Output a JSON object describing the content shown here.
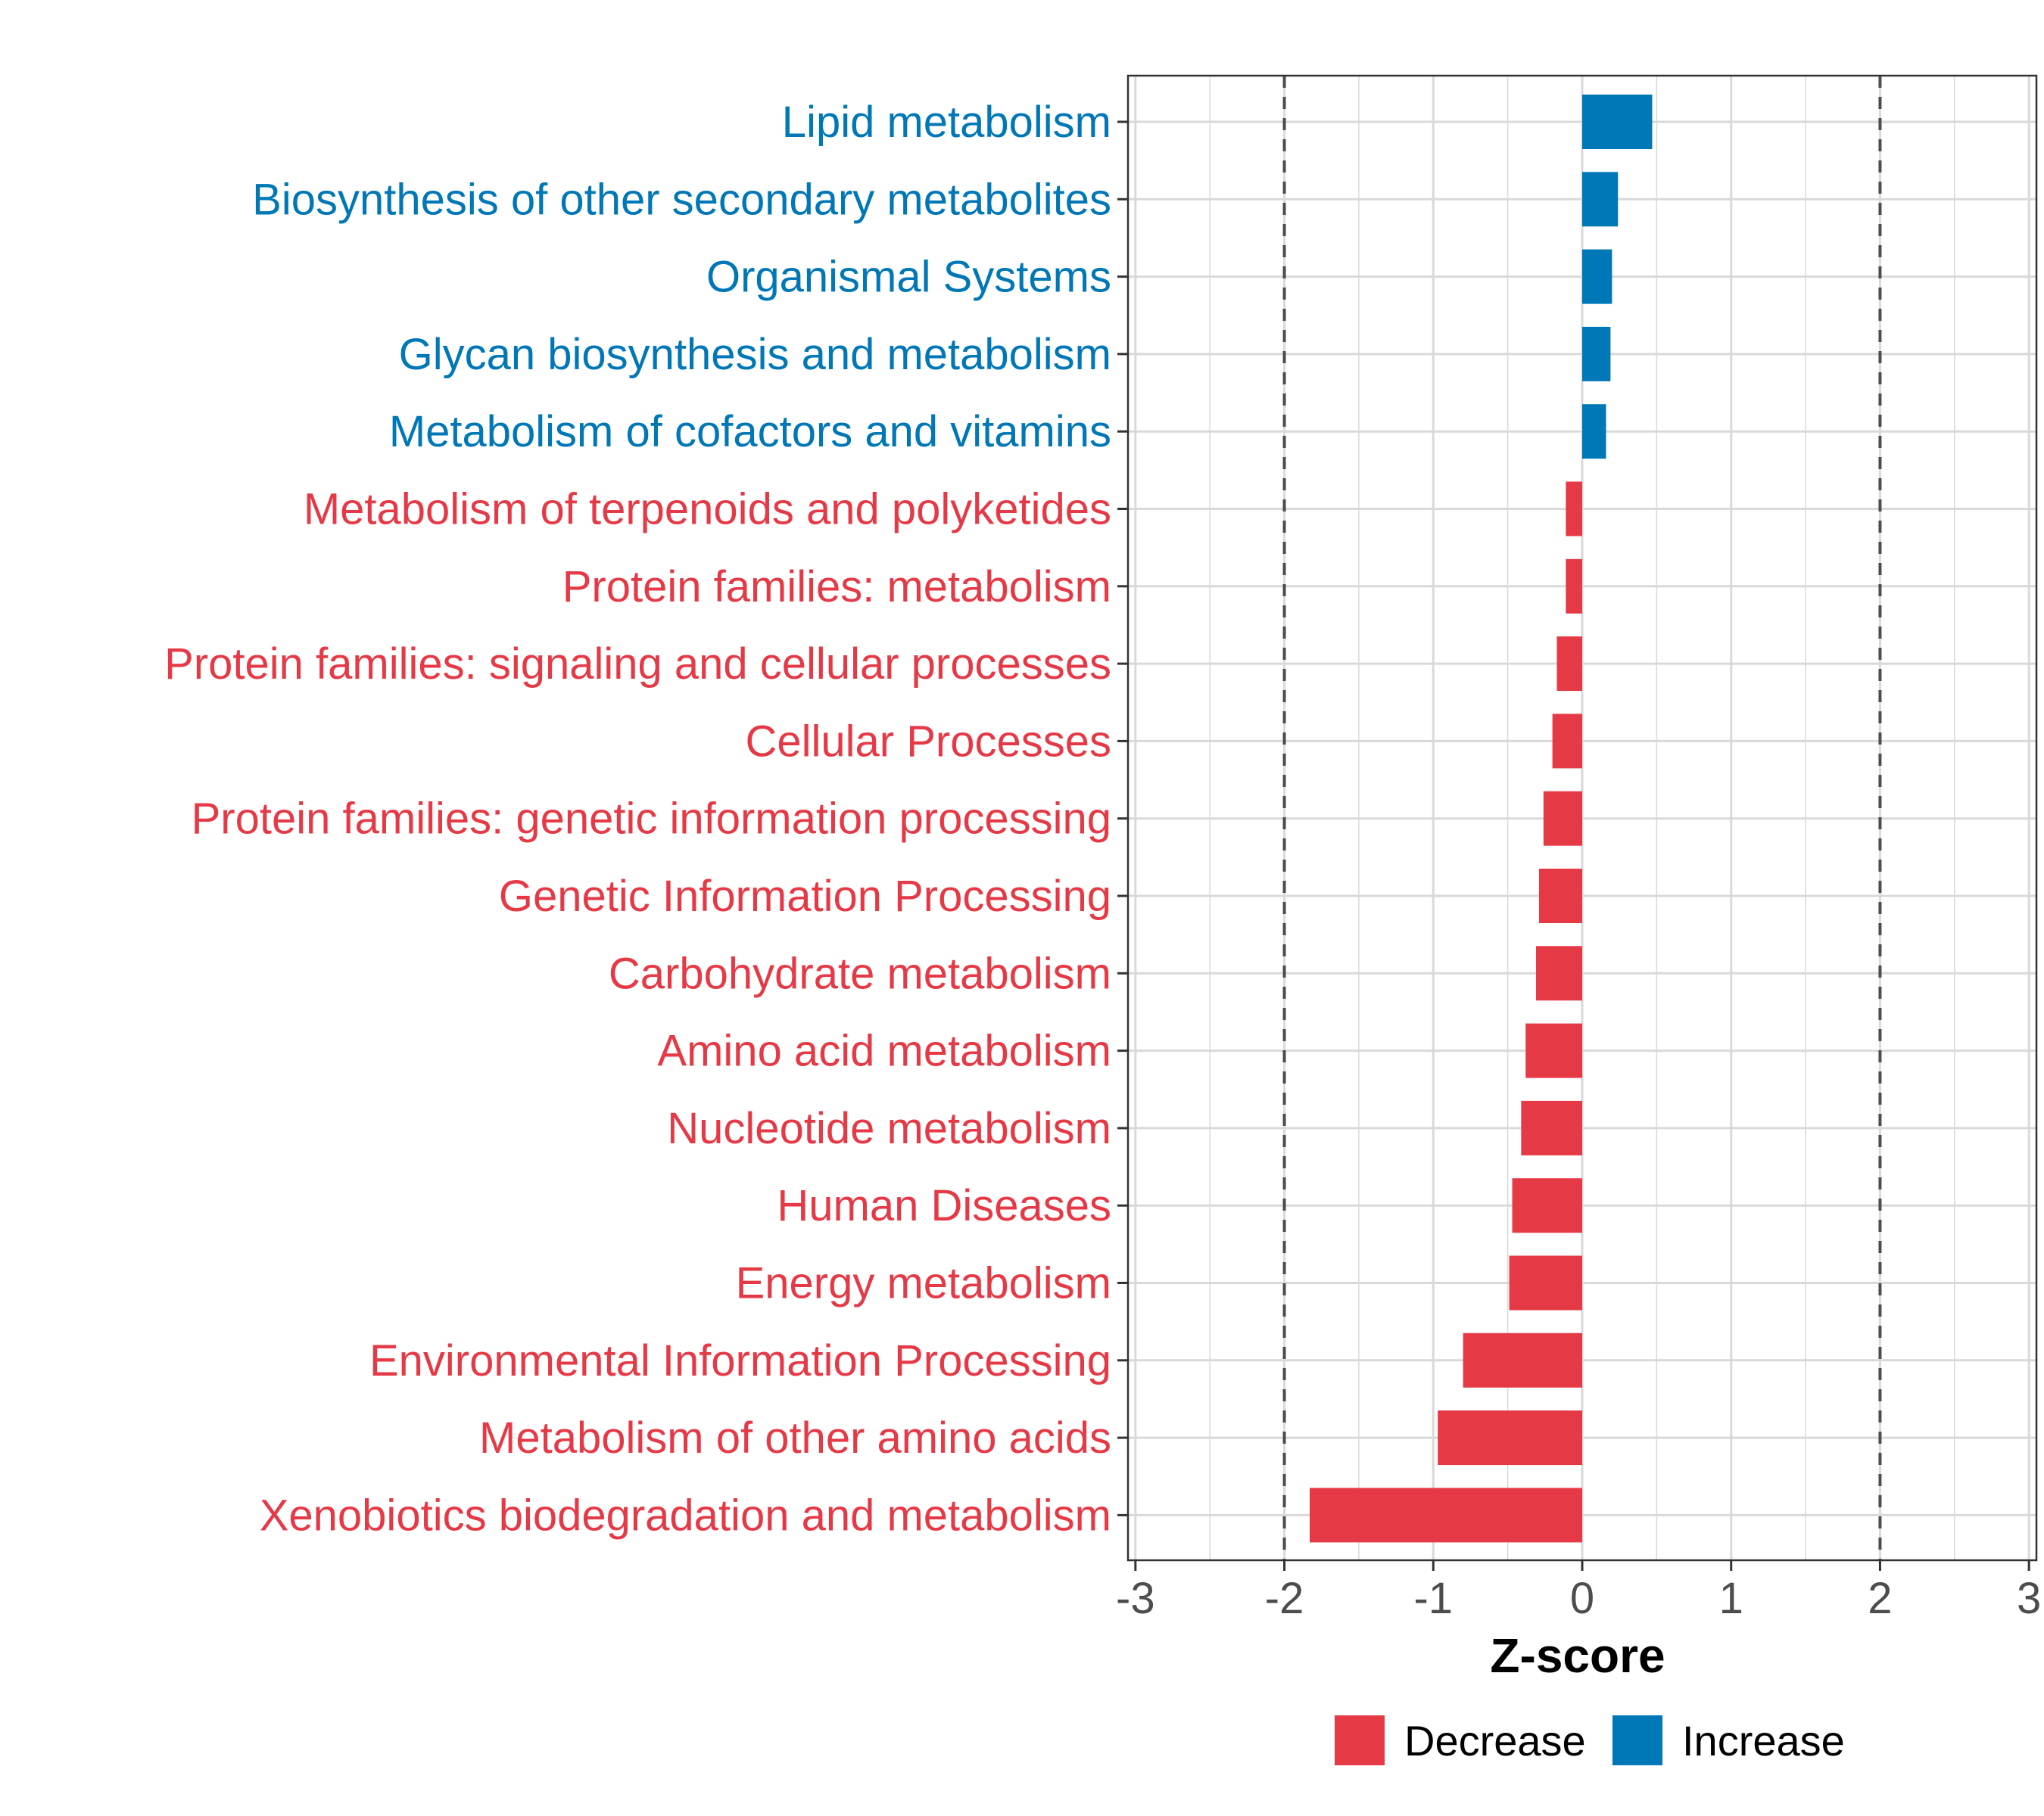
{
  "chart_data": {
    "type": "bar",
    "orientation": "horizontal",
    "xlabel": "Z-score",
    "ylabel": "",
    "xlim": [
      -3.05,
      3.05
    ],
    "xticks": [
      -3,
      -2,
      -1,
      0,
      1,
      2,
      3
    ],
    "xtick_labels": [
      "-3",
      "-2",
      "-1",
      "0",
      "1",
      "2",
      "3"
    ],
    "threshold_lines": [
      -2,
      2
    ],
    "grid": true,
    "legend_position": "bottom",
    "legend": [
      {
        "label": "Decrease",
        "color": "#e63946"
      },
      {
        "label": "Increase",
        "color": "#0077b6"
      }
    ],
    "categories": [
      "Lipid metabolism",
      "Biosynthesis of other secondary metabolites",
      "Organismal Systems",
      "Glycan biosynthesis and metabolism",
      "Metabolism of cofactors and vitamins",
      "Metabolism of terpenoids and polyketides",
      "Protein families: metabolism",
      "Protein families: signaling and cellular processes",
      "Cellular Processes",
      "Protein families: genetic information processing",
      "Genetic Information Processing",
      "Carbohydrate metabolism",
      "Amino acid metabolism",
      "Nucleotide metabolism",
      "Human Diseases",
      "Energy metabolism",
      "Environmental Information Processing",
      "Metabolism of other amino acids",
      "Xenobiotics biodegradation and metabolism"
    ],
    "values": [
      0.47,
      0.24,
      0.2,
      0.19,
      0.16,
      -0.11,
      -0.11,
      -0.17,
      -0.2,
      -0.26,
      -0.29,
      -0.31,
      -0.38,
      -0.41,
      -0.47,
      -0.49,
      -0.8,
      -0.97,
      -1.83
    ],
    "direction": [
      "Increase",
      "Increase",
      "Increase",
      "Increase",
      "Increase",
      "Decrease",
      "Decrease",
      "Decrease",
      "Decrease",
      "Decrease",
      "Decrease",
      "Decrease",
      "Decrease",
      "Decrease",
      "Decrease",
      "Decrease",
      "Decrease",
      "Decrease",
      "Decrease"
    ]
  },
  "colors": {
    "decrease": "#e63946",
    "increase": "#0077b6",
    "grid": "#d9d9d9",
    "tick_text": "#4d4d4d",
    "threshold": "#4d4d4d"
  }
}
